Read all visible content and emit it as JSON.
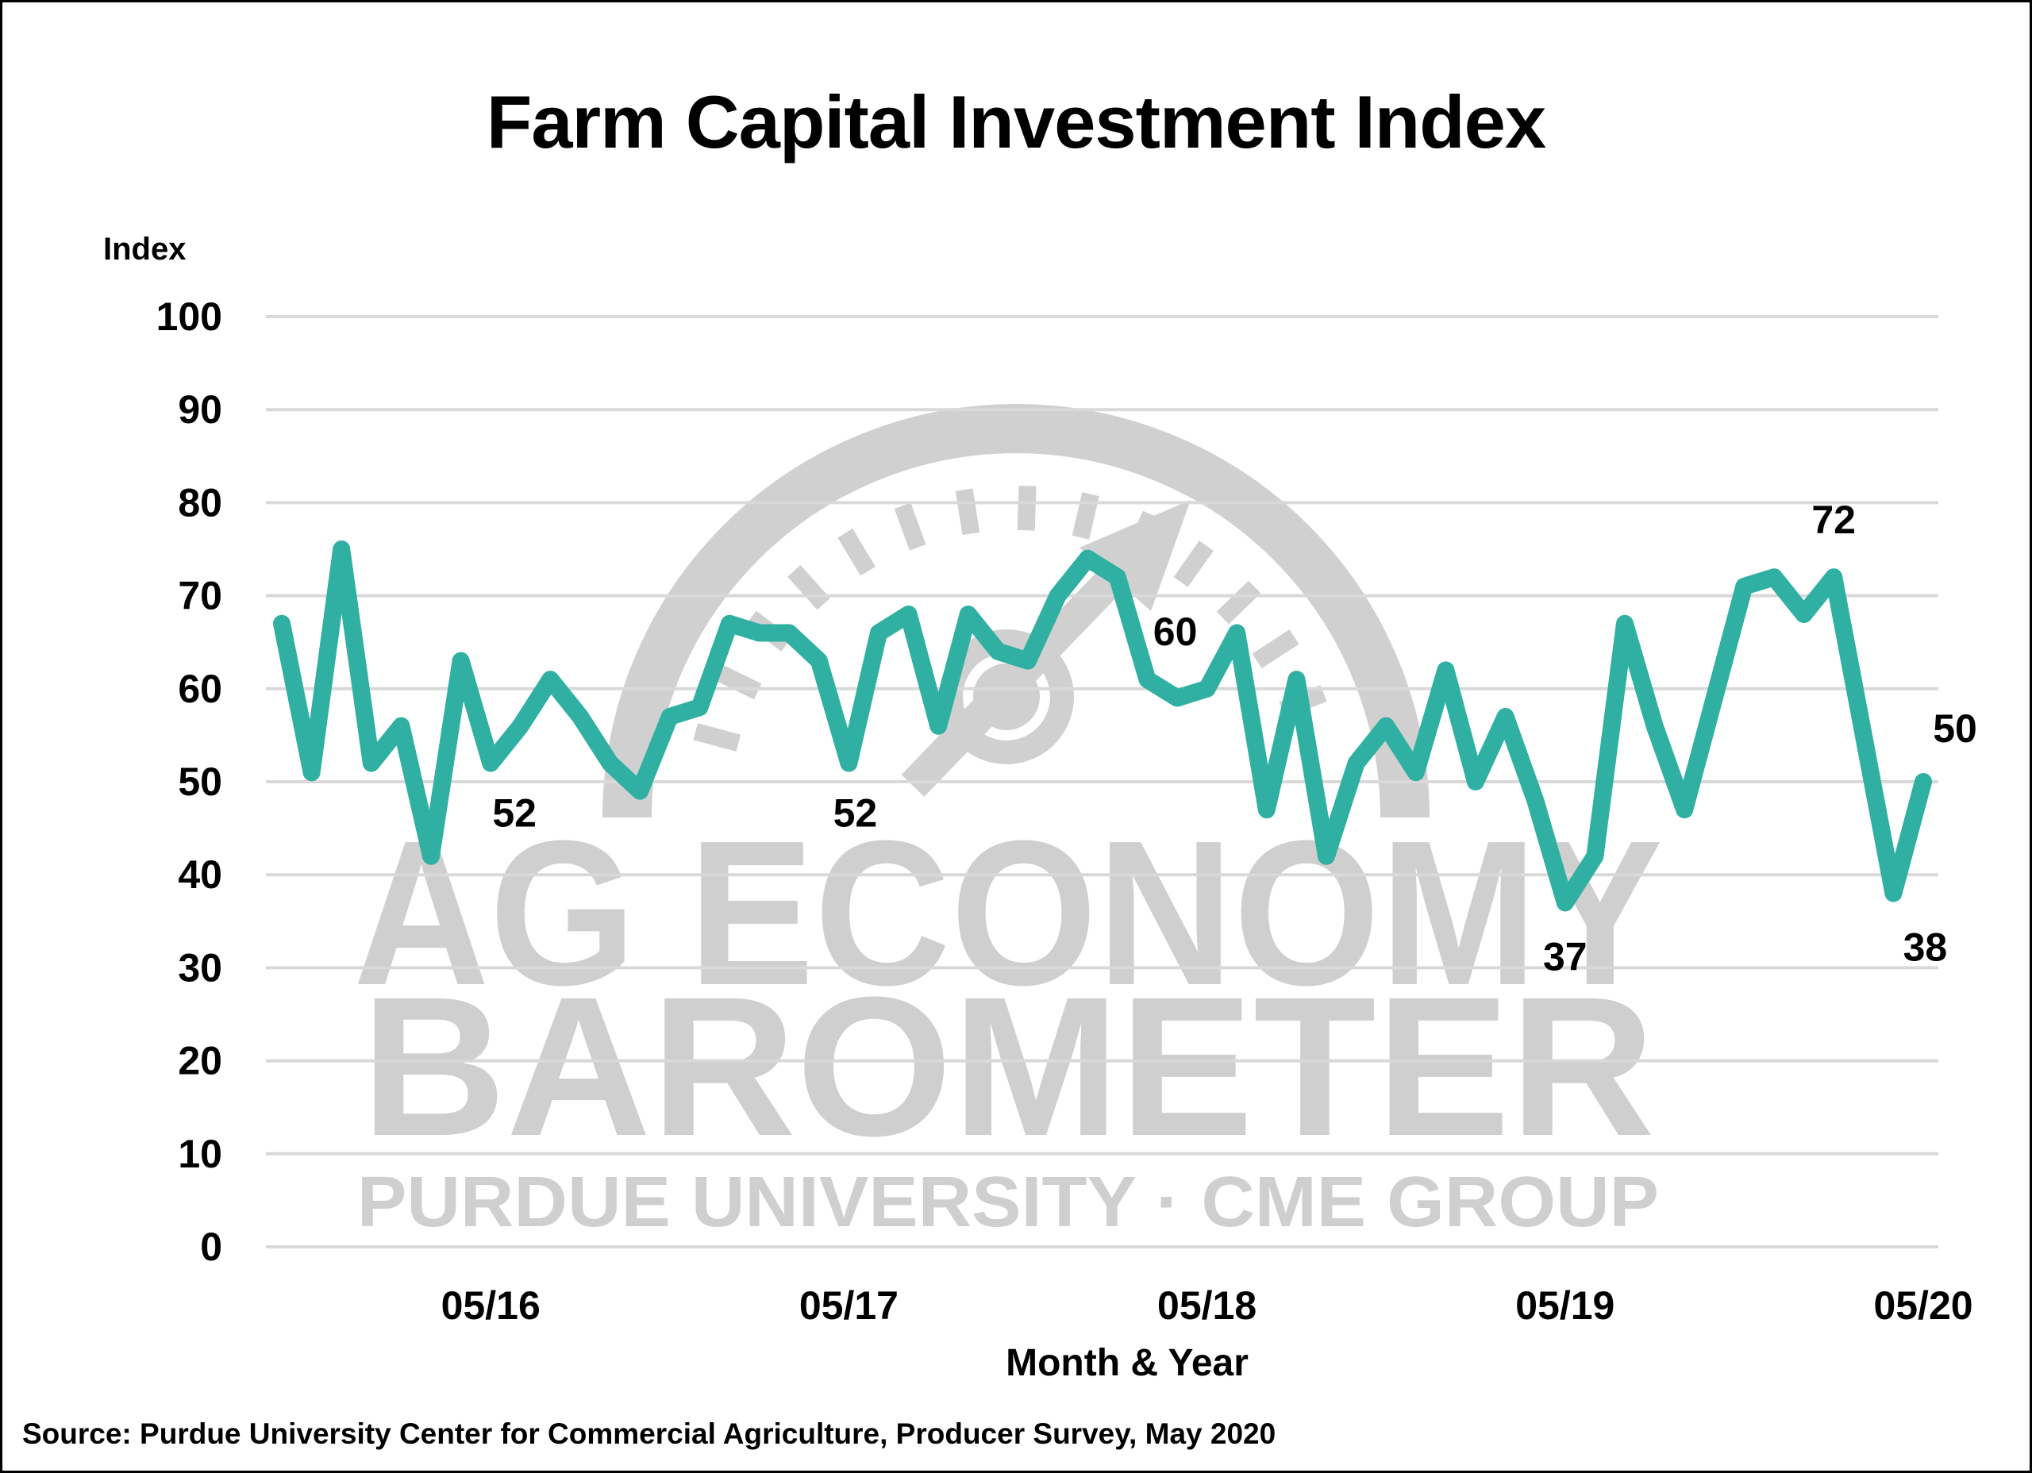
{
  "chart_data": {
    "type": "line",
    "title": "Farm Capital Investment Index",
    "xlabel": "Month & Year",
    "ylabel": "Index",
    "ylim": [
      0,
      100
    ],
    "yticks": [
      0,
      10,
      20,
      30,
      40,
      50,
      60,
      70,
      80,
      90,
      100
    ],
    "xtick_labels": [
      "05/16",
      "05/17",
      "05/18",
      "05/19",
      "05/20"
    ],
    "xtick_indices": [
      7,
      19,
      31,
      43,
      55
    ],
    "grid": true,
    "legend": null,
    "line_color": "#2fb0a2",
    "x": [
      "10/15",
      "11/15",
      "12/15",
      "01/16",
      "02/16",
      "03/16",
      "04/16",
      "05/16",
      "06/16",
      "07/16",
      "08/16",
      "09/16",
      "10/16",
      "11/16",
      "12/16",
      "01/17",
      "02/17",
      "03/17",
      "04/17",
      "05/17",
      "06/17",
      "07/17",
      "08/17",
      "09/17",
      "10/17",
      "11/17",
      "12/17",
      "01/18",
      "02/18",
      "03/18",
      "04/18",
      "05/18",
      "06/18",
      "07/18",
      "08/18",
      "09/18",
      "10/18",
      "11/18",
      "12/18",
      "01/19",
      "02/19",
      "03/19",
      "04/19",
      "05/19",
      "06/19",
      "07/19",
      "08/19",
      "09/19",
      "10/19",
      "11/19",
      "12/19",
      "01/20",
      "02/20",
      "03/20",
      "04/20",
      "05/20"
    ],
    "series": [
      {
        "name": "Farm Capital Investment Index",
        "values": [
          67,
          51,
          75,
          52,
          56,
          42,
          63,
          52,
          56,
          61,
          57,
          52,
          49,
          57,
          58,
          67,
          66,
          66,
          63,
          52,
          66,
          68,
          56,
          68,
          64,
          63,
          70,
          74,
          72,
          61,
          59,
          60,
          66,
          47,
          61,
          42,
          52,
          56,
          51,
          62,
          50,
          57,
          48,
          37,
          42,
          67,
          56,
          47,
          59,
          71,
          72,
          68,
          72,
          55,
          38,
          50
        ]
      }
    ],
    "annotations": [
      {
        "index": 7,
        "text": "52"
      },
      {
        "index": 19,
        "text": "52"
      },
      {
        "index": 31,
        "text": "60"
      },
      {
        "index": 43,
        "text": "37"
      },
      {
        "index": 52,
        "text": "72"
      },
      {
        "index": 54,
        "text": "38"
      },
      {
        "index": 55,
        "text": "50"
      }
    ],
    "source": "Source: Purdue University Center for Commercial Agriculture, Producer Survey, May 2020"
  },
  "watermark": {
    "line1": "AG ECONOMY",
    "line2": "BAROMETER",
    "line3": "PURDUE UNIVERSITY · CME GROUP"
  }
}
